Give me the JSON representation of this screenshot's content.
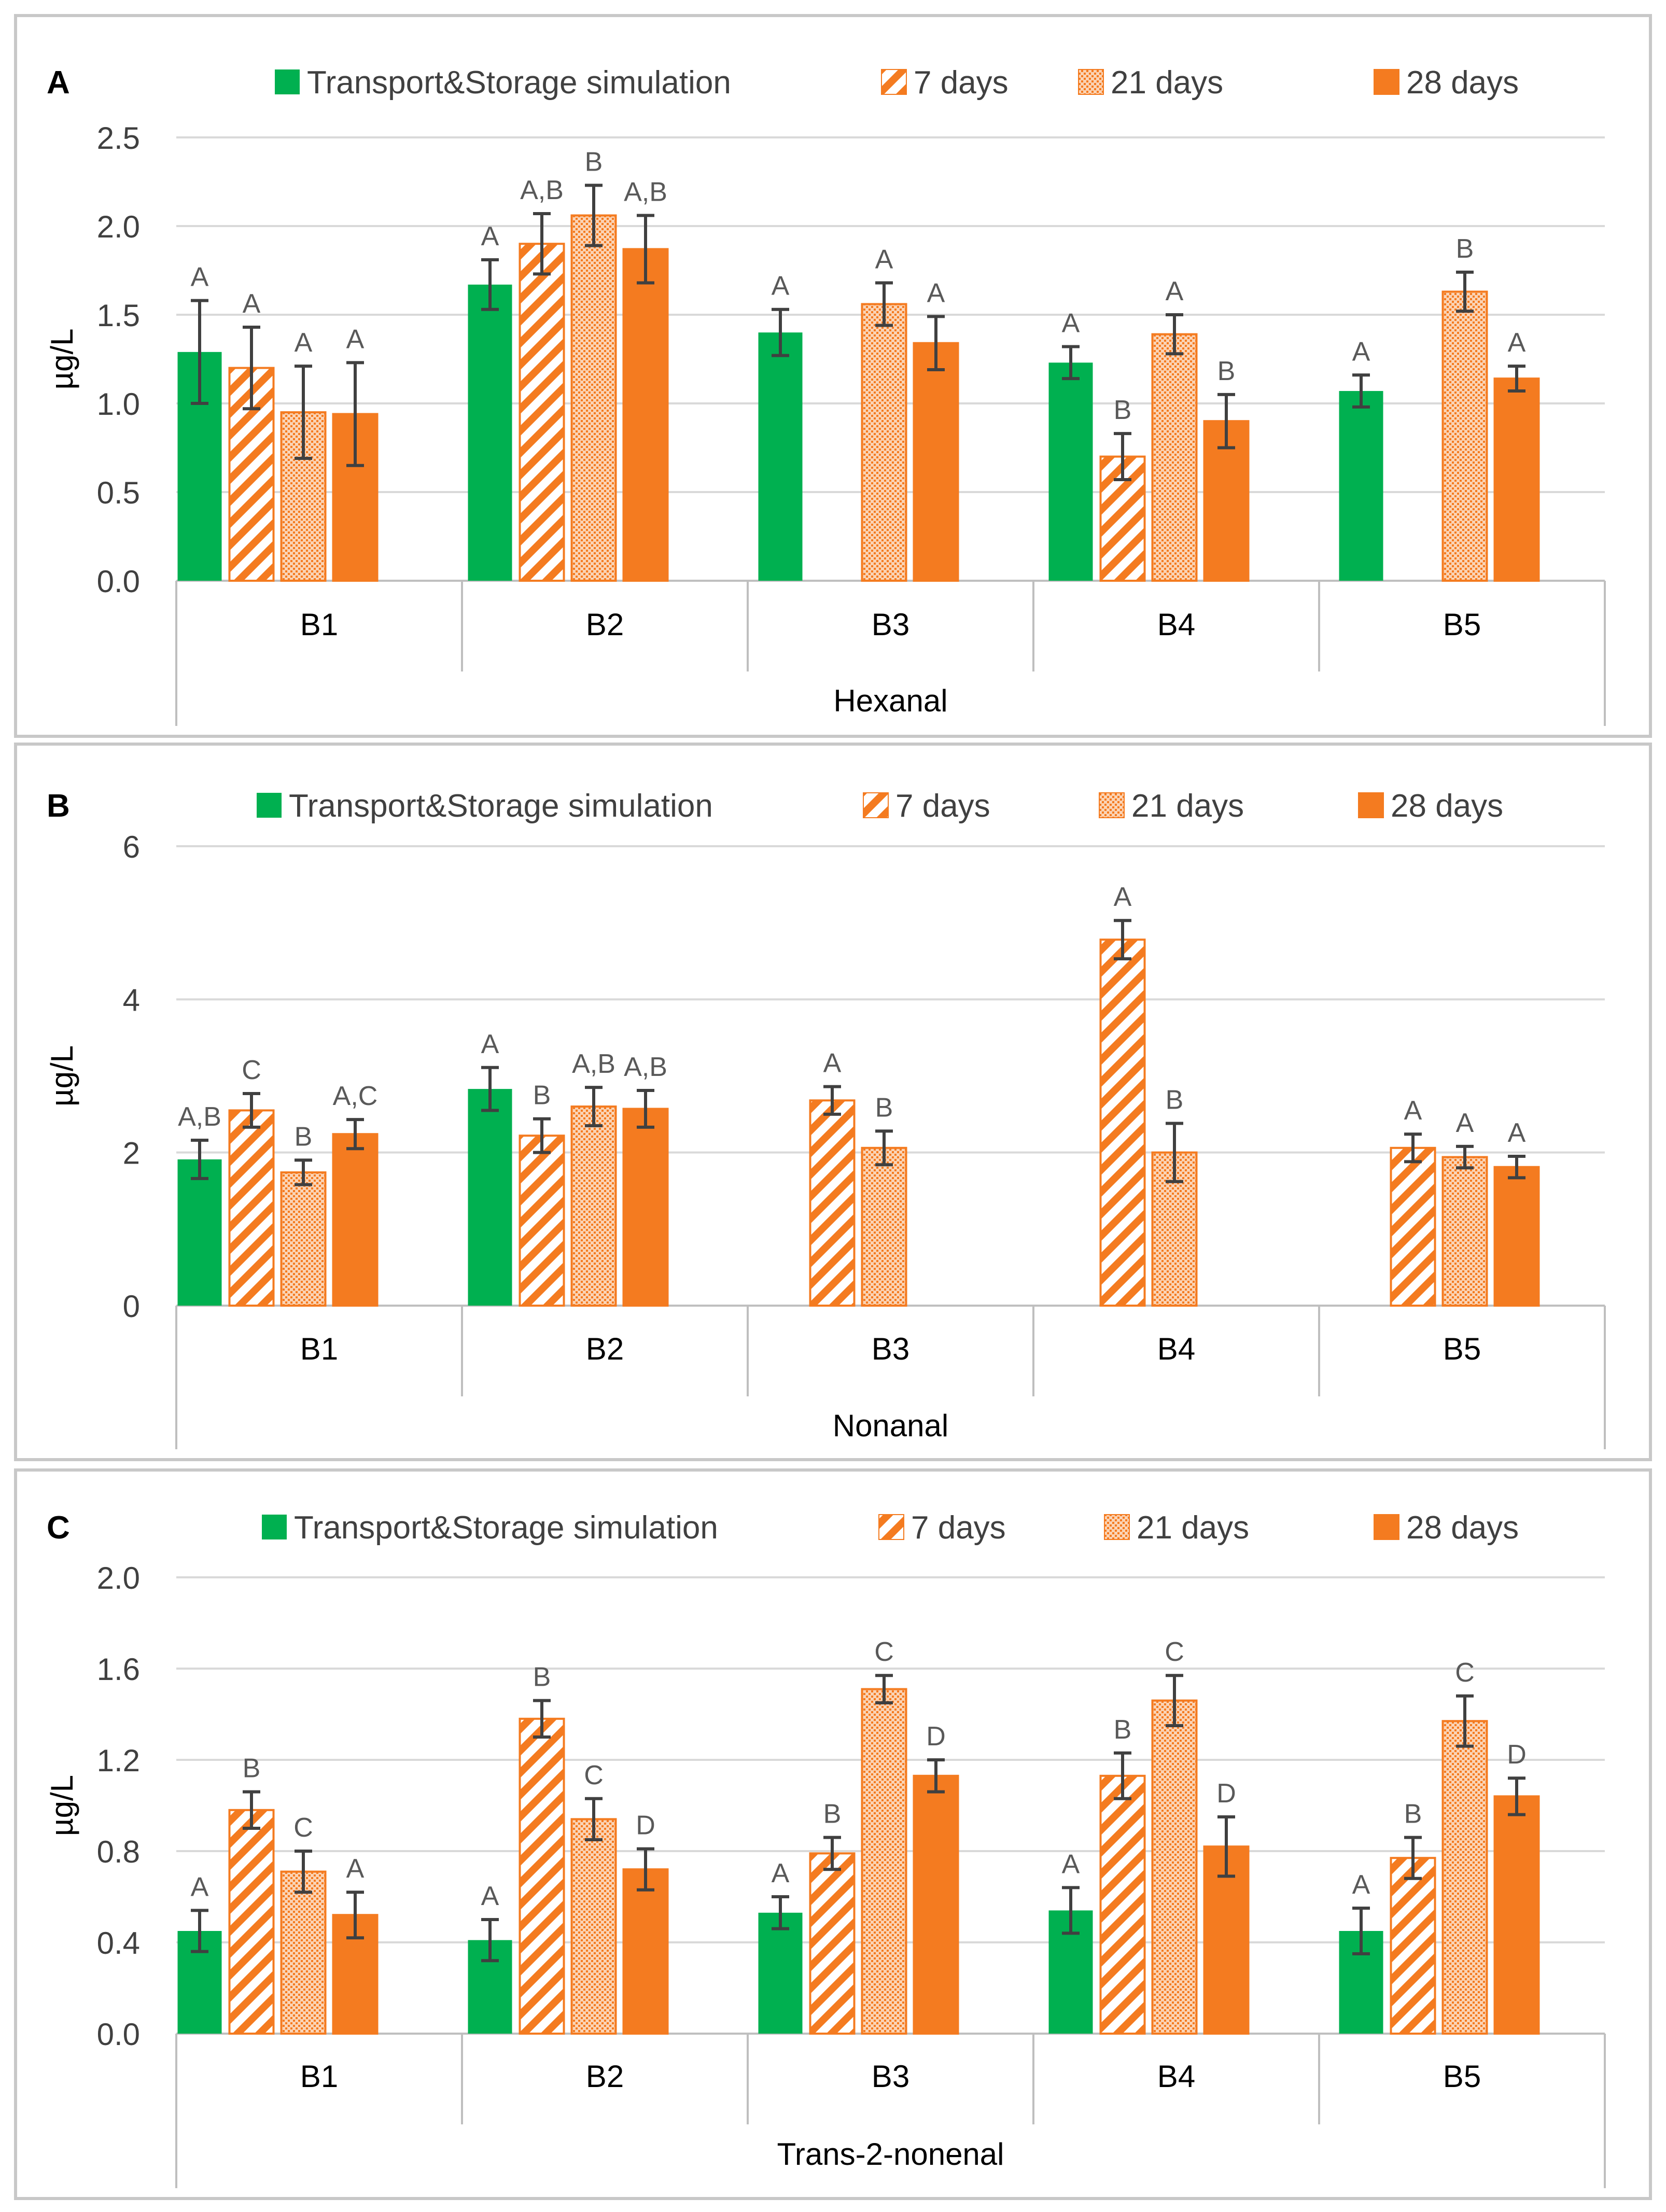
{
  "colors": {
    "green": "#00B050",
    "orange": "#F47B20",
    "grid": "#D9D9D9",
    "axis": "#BFBFBF",
    "text": "#404040",
    "panel_border": "#C8C8C8",
    "error_bar": "#404040"
  },
  "legend": [
    {
      "name": "Transport&Storage simulation",
      "pattern": "solid-green"
    },
    {
      "name": "7 days",
      "pattern": "diagonal-stripes-orange"
    },
    {
      "name": "21 days",
      "pattern": "dotted-grid-orange"
    },
    {
      "name": "28 days",
      "pattern": "solid-orange"
    }
  ],
  "chart_data": [
    {
      "type": "bar",
      "panel_label": "A",
      "title": "Hexanal",
      "ylabel": "µg/L",
      "ylim": [
        0,
        2.5
      ],
      "yticks": [
        "0.0",
        "0.5",
        "1.0",
        "1.5",
        "2.0",
        "2.5"
      ],
      "categories": [
        "B1",
        "B2",
        "B3",
        "B4",
        "B5"
      ],
      "series": [
        {
          "name": "Transport&Storage simulation",
          "values": [
            1.29,
            1.67,
            1.4,
            1.23,
            1.07
          ],
          "errors": [
            0.29,
            0.14,
            0.13,
            0.09,
            0.09
          ],
          "letters": [
            "A",
            "A",
            "A",
            "A",
            "A"
          ]
        },
        {
          "name": "7 days",
          "values": [
            1.2,
            1.9,
            null,
            0.7,
            null
          ],
          "errors": [
            0.23,
            0.17,
            null,
            0.13,
            null
          ],
          "letters": [
            "A",
            "A,B",
            "",
            "B",
            ""
          ]
        },
        {
          "name": "21 days",
          "values": [
            0.95,
            2.06,
            1.56,
            1.39,
            1.63
          ],
          "errors": [
            0.26,
            0.17,
            0.12,
            0.11,
            0.11
          ],
          "letters": [
            "A",
            "B",
            "A",
            "A",
            "B"
          ]
        },
        {
          "name": "28 days",
          "values": [
            0.94,
            1.87,
            1.34,
            0.9,
            1.14
          ],
          "errors": [
            0.29,
            0.19,
            0.15,
            0.15,
            0.07
          ],
          "letters": [
            "A",
            "A,B",
            "A",
            "B",
            "A"
          ]
        }
      ]
    },
    {
      "type": "bar",
      "panel_label": "B",
      "title": "Nonanal",
      "ylabel": "µg/L",
      "ylim": [
        0,
        6
      ],
      "yticks": [
        "0",
        "2",
        "4",
        "6"
      ],
      "categories": [
        "B1",
        "B2",
        "B3",
        "B4",
        "B5"
      ],
      "series": [
        {
          "name": "Transport&Storage simulation",
          "values": [
            1.91,
            2.83,
            null,
            null,
            null
          ],
          "errors": [
            0.25,
            0.28,
            null,
            null,
            null
          ],
          "letters": [
            "A,B",
            "A",
            "",
            "",
            ""
          ]
        },
        {
          "name": "7 days",
          "values": [
            2.55,
            2.22,
            2.68,
            4.78,
            2.06
          ],
          "errors": [
            0.22,
            0.22,
            0.18,
            0.25,
            0.18
          ],
          "letters": [
            "C",
            "B",
            "A",
            "A",
            "A"
          ]
        },
        {
          "name": "21 days",
          "values": [
            1.74,
            2.6,
            2.06,
            2.0,
            1.94
          ],
          "errors": [
            0.16,
            0.25,
            0.22,
            0.38,
            0.14
          ],
          "letters": [
            "B",
            "A,B",
            "B",
            "B",
            "A"
          ]
        },
        {
          "name": "28 days",
          "values": [
            2.24,
            2.57,
            null,
            null,
            1.81
          ],
          "errors": [
            0.19,
            0.24,
            null,
            null,
            0.14
          ],
          "letters": [
            "A,C",
            "A,B",
            "",
            "",
            "A"
          ]
        }
      ]
    },
    {
      "type": "bar",
      "panel_label": "C",
      "title": "Trans-2-nonenal",
      "ylabel": "µg/L",
      "ylim": [
        0,
        2.0
      ],
      "yticks": [
        "0.0",
        "0.4",
        "0.8",
        "1.2",
        "1.6",
        "2.0"
      ],
      "categories": [
        "B1",
        "B2",
        "B3",
        "B4",
        "B5"
      ],
      "series": [
        {
          "name": "Transport&Storage simulation",
          "values": [
            0.45,
            0.41,
            0.53,
            0.54,
            0.45
          ],
          "errors": [
            0.09,
            0.09,
            0.07,
            0.1,
            0.1
          ],
          "letters": [
            "A",
            "A",
            "A",
            "A",
            "A"
          ]
        },
        {
          "name": "7 days",
          "values": [
            0.98,
            1.38,
            0.79,
            1.13,
            0.77
          ],
          "errors": [
            0.08,
            0.08,
            0.07,
            0.1,
            0.09
          ],
          "letters": [
            "B",
            "B",
            "B",
            "B",
            "B"
          ]
        },
        {
          "name": "21 days",
          "values": [
            0.71,
            0.94,
            1.51,
            1.46,
            1.37
          ],
          "errors": [
            0.09,
            0.09,
            0.06,
            0.11,
            0.11
          ],
          "letters": [
            "C",
            "C",
            "C",
            "C",
            "C"
          ]
        },
        {
          "name": "28 days",
          "values": [
            0.52,
            0.72,
            1.13,
            0.82,
            1.04
          ],
          "errors": [
            0.1,
            0.09,
            0.07,
            0.13,
            0.08
          ],
          "letters": [
            "A",
            "D",
            "D",
            "D",
            "D"
          ]
        }
      ]
    }
  ]
}
